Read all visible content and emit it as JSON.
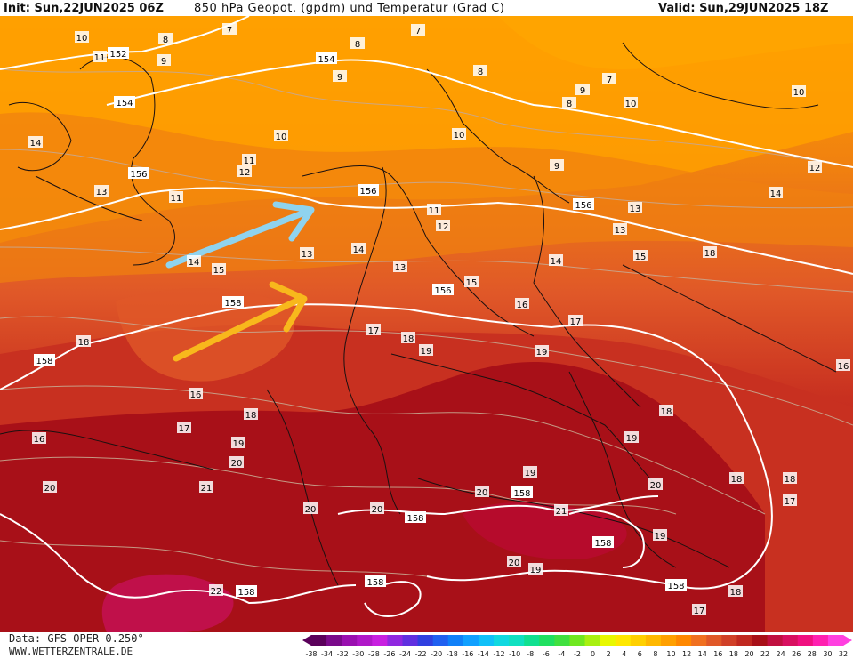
{
  "header": {
    "init": "Init: Sun,22JUN2025 06Z",
    "title": "850 hPa Geopot. (gpdm) und Temperatur (Grad C)",
    "valid": "Valid: Sun,29JUN2025 18Z"
  },
  "footer": {
    "data_source": "Data: GFS OPER 0.250°",
    "website": "WWW.WETTERZENTRALE.DE"
  },
  "colorbar": {
    "ticks": [
      "-38",
      "-34",
      "-32",
      "-30",
      "-28",
      "-26",
      "-24",
      "-22",
      "-20",
      "-18",
      "-16",
      "-14",
      "-12",
      "-10",
      "-8",
      "-6",
      "-4",
      "-2",
      "0",
      "2",
      "4",
      "6",
      "8",
      "10",
      "12",
      "14",
      "16",
      "18",
      "20",
      "22",
      "24",
      "26",
      "28",
      "30",
      "32"
    ],
    "colors": [
      "#5a005a",
      "#7a0a8a",
      "#9a10b0",
      "#b018c8",
      "#c820e0",
      "#9028e0",
      "#6030e0",
      "#3040e0",
      "#2060f0",
      "#1080f8",
      "#10a0ff",
      "#10c0f8",
      "#10d8e0",
      "#10e0c0",
      "#10e090",
      "#20e060",
      "#40e040",
      "#70e820",
      "#a8f010",
      "#e8f800",
      "#ffe800",
      "#ffd000",
      "#ffb800",
      "#ffa000",
      "#ff8800",
      "#f07020",
      "#e05828",
      "#d04028",
      "#c02820",
      "#a81018",
      "#c01040",
      "#d81060",
      "#f01080",
      "#ff20b0",
      "#ff40e0"
    ]
  },
  "geopotential_labels": [
    "152",
    "154",
    "154",
    "156",
    "156",
    "156",
    "156",
    "158",
    "158",
    "158",
    "158",
    "158",
    "158",
    "158",
    "158"
  ],
  "temperature_labels": [
    "10",
    "11",
    "9",
    "8",
    "7",
    "7",
    "8",
    "9",
    "8",
    "9",
    "8",
    "7",
    "10",
    "10",
    "11",
    "9",
    "10",
    "14",
    "12",
    "13",
    "11",
    "10",
    "13",
    "14",
    "11",
    "12",
    "14",
    "15",
    "14",
    "13",
    "13",
    "12",
    "13",
    "14",
    "15",
    "18",
    "16",
    "15",
    "17",
    "18",
    "19",
    "19",
    "16",
    "17",
    "18",
    "19",
    "18",
    "19",
    "20",
    "21",
    "18",
    "17",
    "16",
    "20",
    "20",
    "20",
    "21",
    "19",
    "20",
    "20",
    "19",
    "22",
    "18",
    "17",
    "16",
    "18",
    "17",
    "18",
    "19",
    "20"
  ],
  "icons": {
    "arrow_blue": "arrow-icon",
    "arrow_orange": "arrow-icon"
  },
  "arrow_colors": {
    "blue": "#8fd3ee",
    "orange": "#f8b81c"
  }
}
